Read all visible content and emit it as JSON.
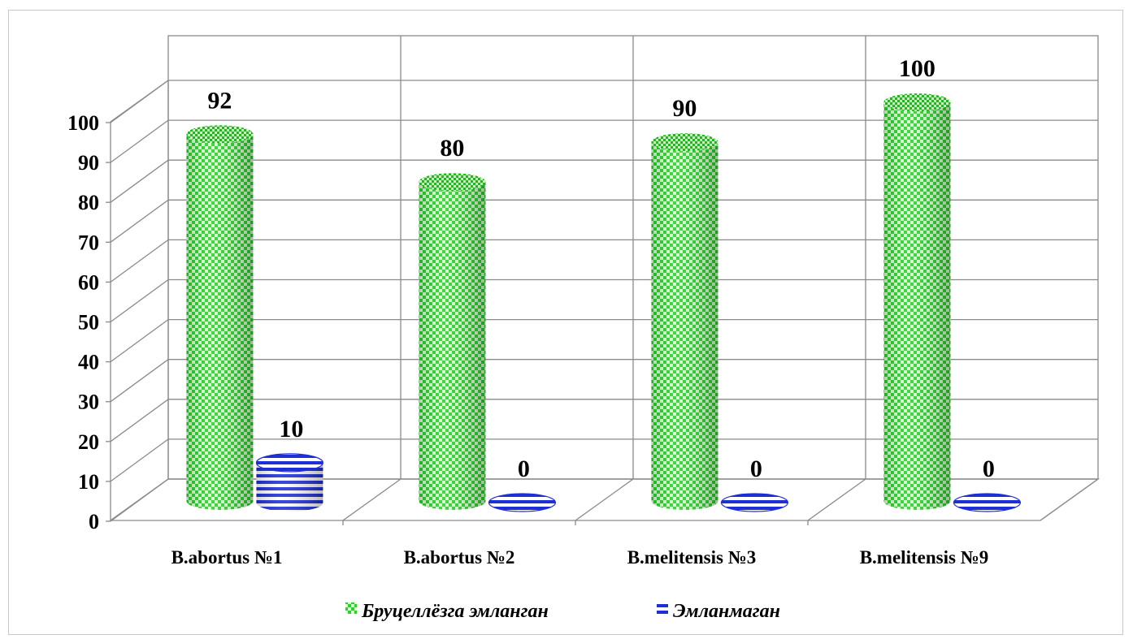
{
  "chart_data": {
    "type": "bar",
    "categories": [
      "B.abortus №1",
      "B.abortus №2",
      "B.melitensis №3",
      "B.melitensis №9"
    ],
    "series": [
      {
        "name": "Бруцеллёзга эмланган",
        "values": [
          92,
          80,
          90,
          100
        ],
        "color": "#22dd22",
        "pattern": "checker"
      },
      {
        "name": "Эмланмаган",
        "values": [
          10,
          0,
          0,
          0
        ],
        "color": "#1f2fd6",
        "pattern": "stripes"
      }
    ],
    "ylim": [
      0,
      100
    ],
    "yticks": [
      0,
      10,
      20,
      30,
      40,
      50,
      60,
      70,
      80,
      90,
      100
    ],
    "ytick_labels": [
      "0",
      "10",
      "20",
      "30",
      "40",
      "50",
      "60",
      "70",
      "80",
      "90",
      "100"
    ],
    "data_labels": [
      [
        "92",
        "80",
        "90",
        "100"
      ],
      [
        "10",
        "0",
        "0",
        "0"
      ]
    ],
    "grid": true,
    "legend": "bottom",
    "style": "3d-cylinder"
  }
}
